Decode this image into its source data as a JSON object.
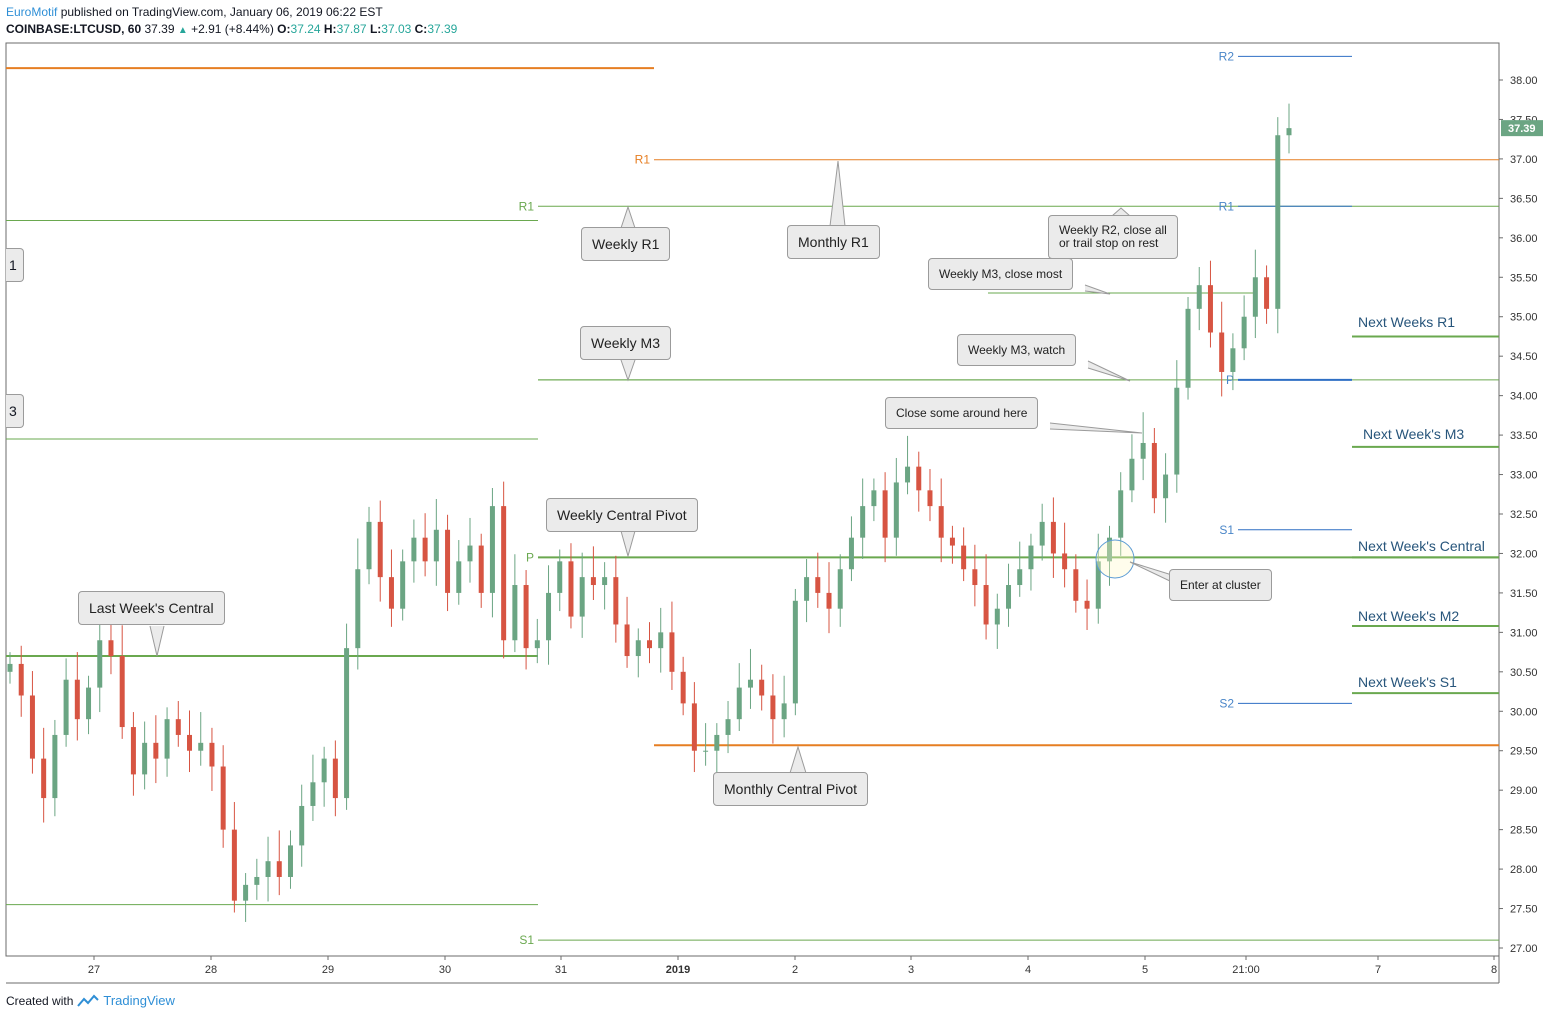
{
  "header": {
    "brand": "EuroMotif",
    "published": "published on TradingView.com, January 06, 2019 06:22 EST",
    "symbol": "COINBASE:LTCUSD, 60",
    "last": "37.39",
    "change_arrow": "▲",
    "change": "+2.91 (+8.44%)",
    "o_key": "O:",
    "o_val": "37.24",
    "h_key": "H:",
    "h_val": "37.87",
    "l_key": "L:",
    "l_val": "37.03",
    "c_key": "C:",
    "c_val": "37.39"
  },
  "footer": {
    "created_with": "Created with",
    "logo_text": "TradingView",
    "logo_icon": "tradingview-logo-icon"
  },
  "price_tag": "37.39",
  "side_tabs": [
    "1",
    "3"
  ],
  "callouts": {
    "weekly_r1": "Weekly R1",
    "monthly_r1": "Monthly R1",
    "weekly_r2_close": [
      "Weekly R2, close all",
      "or trail stop on rest"
    ],
    "weekly_m3_close_most": "Weekly M3, close most",
    "weekly_m3": "Weekly M3",
    "weekly_m3_watch": "Weekly M3, watch",
    "close_some": "Close some around here",
    "weekly_central_pivot": "Weekly Central Pivot",
    "last_week_central": "Last Week's Central",
    "enter_at_cluster": "Enter at cluster",
    "monthly_central_pivot": "Monthly Central Pivot"
  },
  "next_week_labels": [
    "Next Weeks R1",
    "Next Week's M3",
    "Next Week's Central",
    "Next Week's M2",
    "Next Week's S1"
  ],
  "colors": {
    "up": "#6ba583",
    "down": "#d75442",
    "weekly": "#6aa84f",
    "monthly": "#e67e22",
    "next": "#6aa84f",
    "daily": "#2f6fc4",
    "text_next": "#27557b",
    "price_tag": "#6ba583"
  },
  "chart_data": {
    "type": "candlestick",
    "title": "",
    "ylim": [
      26.9,
      38.4
    ],
    "y_ticks": [
      "38.00",
      "37.50",
      "37.00",
      "36.50",
      "36.00",
      "35.50",
      "35.00",
      "34.50",
      "34.00",
      "33.50",
      "33.00",
      "32.50",
      "32.00",
      "31.50",
      "31.00",
      "30.50",
      "30.00",
      "29.50",
      "29.00",
      "28.50",
      "28.00",
      "27.50",
      "27.00"
    ],
    "x_ticks": [
      "27",
      "28",
      "29",
      "30",
      "31",
      "2019",
      "2",
      "3",
      "4",
      "5",
      "21:00",
      "7",
      "8"
    ],
    "levels": [
      {
        "label": "R1",
        "value": 36.4,
        "type": "weekly"
      },
      {
        "label": "M3",
        "value": 34.2,
        "type": "weekly"
      },
      {
        "label": "P",
        "value": 31.95,
        "type": "weekly"
      },
      {
        "label": "S1",
        "value": 27.1,
        "type": "weekly"
      },
      {
        "label": "R1",
        "value": 36.99,
        "type": "monthly"
      },
      {
        "label": "Central Pivot",
        "value": 29.57,
        "type": "monthly"
      },
      {
        "label": "R2",
        "value": 38.3,
        "type": "daily"
      },
      {
        "label": "R1",
        "value": 36.4,
        "type": "daily"
      },
      {
        "label": "P",
        "value": 34.2,
        "type": "daily"
      },
      {
        "label": "S1",
        "value": 32.3,
        "type": "daily"
      },
      {
        "label": "S2",
        "value": 30.1,
        "type": "daily"
      },
      {
        "label": "R1",
        "value": 34.75,
        "type": "next_week"
      },
      {
        "label": "M3",
        "value": 33.35,
        "type": "next_week"
      },
      {
        "label": "Central",
        "value": 31.95,
        "type": "next_week"
      },
      {
        "label": "M2",
        "value": 31.08,
        "type": "next_week"
      },
      {
        "label": "S1",
        "value": 30.23,
        "type": "next_week"
      },
      {
        "label": "prior_r1",
        "value": 36.22,
        "type": "prior_weekly"
      },
      {
        "label": "prior_level",
        "value": 33.45,
        "type": "prior_weekly"
      },
      {
        "label": "prior_central",
        "value": 30.7,
        "type": "prior_weekly"
      },
      {
        "label": "prior_s1",
        "value": 27.55,
        "type": "prior_weekly"
      },
      {
        "label": "prior_monthly",
        "value": 38.15,
        "type": "prior_monthly"
      }
    ],
    "closes": [
      30.6,
      30.2,
      29.4,
      28.9,
      29.7,
      30.4,
      29.9,
      30.3,
      30.9,
      30.7,
      29.8,
      29.2,
      29.6,
      29.4,
      29.9,
      29.7,
      29.5,
      29.6,
      29.3,
      28.5,
      27.6,
      27.8,
      27.9,
      28.1,
      27.9,
      28.3,
      28.8,
      29.1,
      29.4,
      28.9,
      30.8,
      31.8,
      32.4,
      31.7,
      31.3,
      31.9,
      32.2,
      31.9,
      32.3,
      31.5,
      31.9,
      32.1,
      31.5,
      32.6,
      30.9,
      31.6,
      30.8,
      30.9,
      31.5,
      31.9,
      31.2,
      31.7,
      31.6,
      31.7,
      31.1,
      30.7,
      30.9,
      30.8,
      31.0,
      30.5,
      30.1,
      29.5,
      29.5,
      29.7,
      29.9,
      30.3,
      30.4,
      30.2,
      29.9,
      30.1,
      31.4,
      31.7,
      31.5,
      31.3,
      31.8,
      32.2,
      32.6,
      32.8,
      32.2,
      32.9,
      33.1,
      32.8,
      32.6,
      32.2,
      32.1,
      31.8,
      31.6,
      31.1,
      31.3,
      31.6,
      31.8,
      32.1,
      32.4,
      32.0,
      31.8,
      31.4,
      31.3,
      31.9,
      32.2,
      32.8,
      33.2,
      33.4,
      32.7,
      33.0,
      34.1,
      35.1,
      35.4,
      34.8,
      34.3,
      34.6,
      35.0,
      35.5,
      35.1,
      37.3,
      37.39
    ]
  }
}
